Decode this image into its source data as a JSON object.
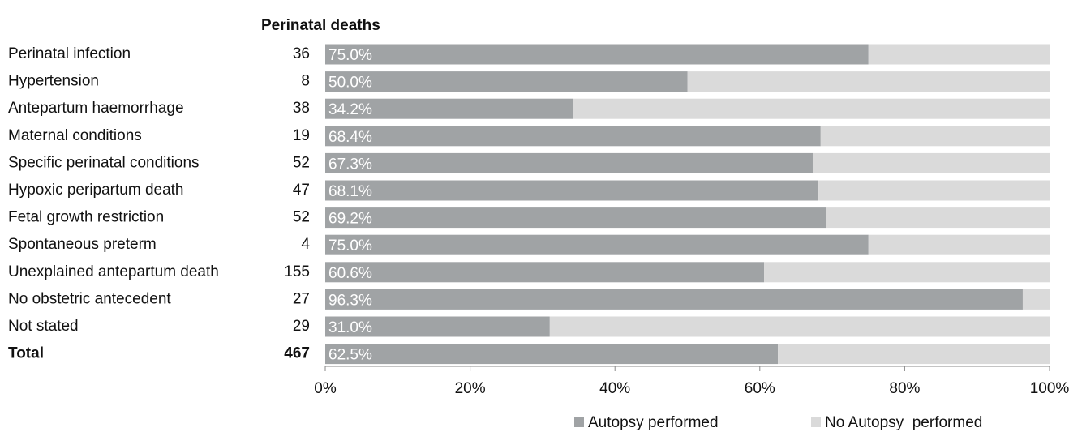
{
  "chart_data": {
    "type": "stacked-barh",
    "deaths_label": "Perinatal deaths",
    "categories": [
      "Perinatal infection",
      "Hypertension",
      "Antepartum haemorrhage",
      "Maternal conditions",
      "Specific perinatal conditions",
      "Hypoxic peripartum death",
      "Fetal growth restriction",
      "Spontaneous preterm",
      "Unexplained antepartum death",
      "No obstetric antecedent",
      "Not stated",
      "Total"
    ],
    "deaths": [
      36,
      8,
      38,
      19,
      52,
      47,
      52,
      4,
      155,
      27,
      29,
      467
    ],
    "series": [
      {
        "name": "Autopsy performed",
        "color": "#a0a3a5",
        "values": [
          75.0,
          50.0,
          34.2,
          68.4,
          67.3,
          68.1,
          69.2,
          75.0,
          60.6,
          96.3,
          31.0,
          62.5
        ],
        "value_labels": [
          "75.0%",
          "50.0%",
          "34.2%",
          "68.4%",
          "67.3%",
          "68.1%",
          "69.2%",
          "75.0%",
          "60.6%",
          "96.3%",
          "31.0%",
          "62.5%"
        ]
      },
      {
        "name": "No Autopsy  performed",
        "color": "#dadada",
        "values": [
          25.0,
          50.0,
          65.8,
          31.6,
          32.7,
          31.9,
          30.8,
          25.0,
          39.4,
          3.7,
          69.0,
          37.5
        ]
      }
    ],
    "xlim": [
      0,
      100
    ],
    "xticks": [
      {
        "value": 0,
        "label": "0%"
      },
      {
        "value": 20,
        "label": "20%"
      },
      {
        "value": 40,
        "label": "40%"
      },
      {
        "value": 60,
        "label": "60%"
      },
      {
        "value": 80,
        "label": "80%"
      },
      {
        "value": 100,
        "label": "100%"
      }
    ]
  }
}
